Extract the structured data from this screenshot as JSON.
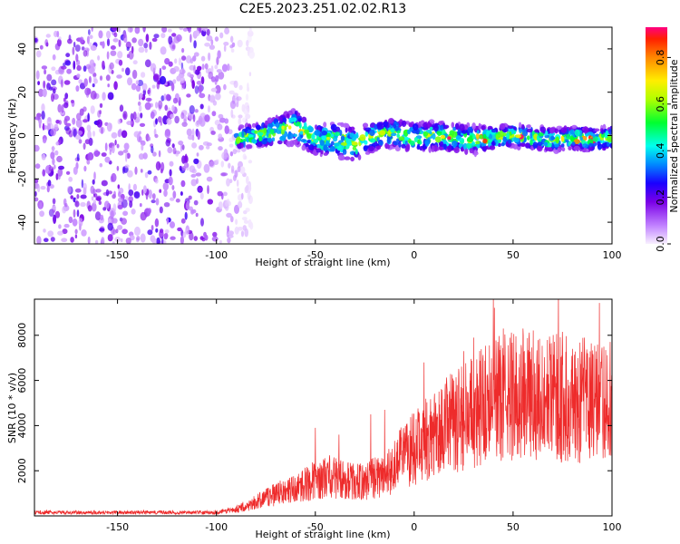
{
  "title": "C2E5.2023.251.02.02.R13",
  "colors": {
    "snr_line": "#ee2b2b",
    "axis": "#000000",
    "background": "#ffffff"
  },
  "chart_data": [
    {
      "type": "heatmap",
      "title": "",
      "xlabel": "Height of straight line (km)",
      "ylabel": "Frequency (Hz)",
      "xlim": [
        -192,
        100
      ],
      "ylim": [
        -50,
        50
      ],
      "x_ticks": [
        -150,
        -100,
        -50,
        0,
        50,
        100
      ],
      "y_ticks": [
        -40,
        -20,
        0,
        20,
        40
      ],
      "grid": false,
      "noise_region": {
        "x_range": [
          -192,
          -88
        ],
        "y_range": [
          -50,
          50
        ]
      },
      "signal_band": [
        {
          "x": -90,
          "center": -1,
          "halfwidth": 4
        },
        {
          "x": -80,
          "center": 0,
          "halfwidth": 4
        },
        {
          "x": -70,
          "center": 2,
          "halfwidth": 5
        },
        {
          "x": -60,
          "center": 4,
          "halfwidth": 6
        },
        {
          "x": -50,
          "center": -2,
          "halfwidth": 5
        },
        {
          "x": -40,
          "center": -2,
          "halfwidth": 6
        },
        {
          "x": -30,
          "center": -4,
          "halfwidth": 6
        },
        {
          "x": -20,
          "center": 0,
          "halfwidth": 5
        },
        {
          "x": -10,
          "center": 1,
          "halfwidth": 5
        },
        {
          "x": 0,
          "center": -1,
          "halfwidth": 5
        },
        {
          "x": 10,
          "center": 0,
          "halfwidth": 5
        },
        {
          "x": 20,
          "center": -1,
          "halfwidth": 5
        },
        {
          "x": 30,
          "center": -2,
          "halfwidth": 5
        },
        {
          "x": 40,
          "center": -1,
          "halfwidth": 4
        },
        {
          "x": 50,
          "center": 0,
          "halfwidth": 4
        },
        {
          "x": 60,
          "center": -1,
          "halfwidth": 4
        },
        {
          "x": 70,
          "center": -2,
          "halfwidth": 4
        },
        {
          "x": 80,
          "center": -1,
          "halfwidth": 4
        },
        {
          "x": 90,
          "center": -2,
          "halfwidth": 4
        },
        {
          "x": 100,
          "center": -1,
          "halfwidth": 4
        }
      ],
      "colorbar": {
        "label": "Normalized spectral amplitude",
        "range": [
          0,
          0.93
        ],
        "ticks": [
          "0.0",
          "0.2",
          "0.4",
          "0.6",
          "0.8"
        ],
        "colormap": [
          {
            "value": 0.0,
            "color": "#f8f0ff"
          },
          {
            "value": 0.08,
            "color": "#c080ff"
          },
          {
            "value": 0.18,
            "color": "#7a00e6"
          },
          {
            "value": 0.26,
            "color": "#1a00ff"
          },
          {
            "value": 0.34,
            "color": "#0088ff"
          },
          {
            "value": 0.42,
            "color": "#00ffee"
          },
          {
            "value": 0.52,
            "color": "#00ff30"
          },
          {
            "value": 0.62,
            "color": "#b0ff00"
          },
          {
            "value": 0.7,
            "color": "#ffee00"
          },
          {
            "value": 0.8,
            "color": "#ff8800"
          },
          {
            "value": 0.88,
            "color": "#ff2000"
          },
          {
            "value": 0.93,
            "color": "#ff0080"
          }
        ]
      }
    },
    {
      "type": "line",
      "title": "",
      "xlabel": "Height of straight line (km)",
      "ylabel": "SNR (10 * v/v)",
      "xlim": [
        -192,
        100
      ],
      "ylim": [
        0,
        9600
      ],
      "x_ticks": [
        -150,
        -100,
        -50,
        0,
        50,
        100
      ],
      "y_ticks": [
        2000,
        4000,
        6000,
        8000
      ],
      "grid": false,
      "series": [
        {
          "color": "#ee2b2b",
          "x": [
            -192,
            -180,
            -170,
            -160,
            -150,
            -140,
            -130,
            -120,
            -110,
            -100,
            -95,
            -90,
            -85,
            -80,
            -75,
            -70,
            -65,
            -60,
            -55,
            -50,
            -45,
            -40,
            -35,
            -30,
            -25,
            -20,
            -15,
            -10,
            -5,
            0,
            5,
            10,
            15,
            20,
            25,
            30,
            35,
            40,
            45,
            50,
            55,
            60,
            65,
            70,
            75,
            80,
            85,
            90,
            95,
            100
          ],
          "values": [
            150,
            150,
            150,
            150,
            150,
            150,
            150,
            150,
            150,
            160,
            220,
            300,
            450,
            600,
            800,
            950,
            1100,
            1200,
            1400,
            1600,
            1700,
            1700,
            1600,
            1500,
            1500,
            1700,
            1800,
            2200,
            2700,
            3000,
            3300,
            3600,
            3900,
            4200,
            4400,
            4700,
            4900,
            5100,
            5200,
            5300,
            5300,
            5300,
            5300,
            5200,
            5200,
            5100,
            5100,
            5100,
            5100,
            5100
          ],
          "peaks_x": [
            -50,
            -38,
            -22,
            -15,
            5,
            20,
            25,
            30,
            40,
            45,
            55,
            58,
            75,
            85
          ],
          "peaks_y": [
            3900,
            3600,
            4500,
            4700,
            6800,
            6000,
            7300,
            7900,
            9600,
            8300,
            8300,
            7900,
            7300,
            6000
          ]
        }
      ]
    }
  ]
}
